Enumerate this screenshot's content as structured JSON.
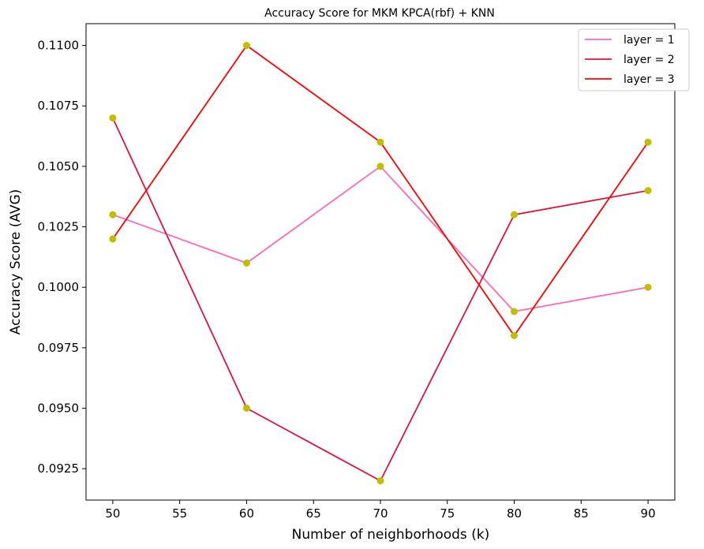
{
  "chart_data": {
    "type": "line",
    "title": "Accuracy Score for MKM KPCA(rbf) + KNN",
    "xlabel": "Number of neighborhoods (k)",
    "ylabel": "Accuracy Score (AVG)",
    "x": [
      50,
      60,
      70,
      80,
      90
    ],
    "xlim": [
      48,
      92
    ],
    "ylim": [
      0.0912,
      0.1109
    ],
    "xticks": [
      50,
      55,
      60,
      65,
      70,
      75,
      80,
      85,
      90
    ],
    "xtick_labels": [
      "50",
      "55",
      "60",
      "65",
      "70",
      "75",
      "80",
      "85",
      "90"
    ],
    "yticks": [
      0.0925,
      0.095,
      0.0975,
      0.1,
      0.1025,
      0.105,
      0.1075,
      0.11
    ],
    "ytick_labels": [
      "0.0925",
      "0.0950",
      "0.0975",
      "0.1000",
      "0.1025",
      "0.1050",
      "0.1075",
      "0.1100"
    ],
    "grid": false,
    "legend_position": "top-right",
    "marker_color": "#bfbf00",
    "series": [
      {
        "name": "layer = 1",
        "color": "#ff69b4",
        "values": [
          0.103,
          0.101,
          0.105,
          0.099,
          0.1
        ]
      },
      {
        "name": "layer = 2",
        "color": "#dc143c",
        "values": [
          0.107,
          0.095,
          0.092,
          0.103,
          0.104
        ]
      },
      {
        "name": "layer = 3",
        "color": "#ff0000",
        "values": [
          0.102,
          0.11,
          0.106,
          0.098,
          0.106
        ]
      }
    ]
  }
}
